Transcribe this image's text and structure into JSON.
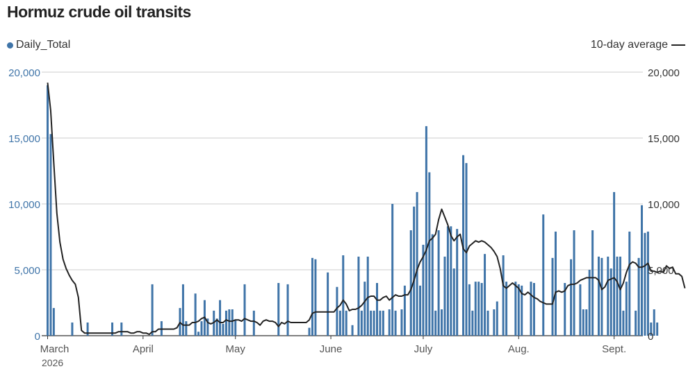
{
  "chart_data": {
    "type": "bar",
    "title": "Hormuz crude oil transits",
    "subtitle": "",
    "xlabel": "",
    "ylabel": "",
    "ylim": [
      0,
      20000
    ],
    "grid": true,
    "legend": {
      "left": "Daily_Total",
      "right": "10-day average"
    },
    "yticks": [
      0,
      5000,
      10000,
      15000,
      20000
    ],
    "ytick_labels": [
      "0",
      "5,000",
      "10,000",
      "15,000",
      "20,000"
    ],
    "xticks": [
      {
        "day": 0,
        "label": "March"
      },
      {
        "day": 31,
        "label": "April"
      },
      {
        "day": 61,
        "label": "May"
      },
      {
        "day": 92,
        "label": "June"
      },
      {
        "day": 122,
        "label": "July"
      },
      {
        "day": 153,
        "label": "Aug."
      },
      {
        "day": 184,
        "label": "Sept."
      }
    ],
    "x_sublabel": "2026",
    "series": [
      {
        "name": "Daily_Total",
        "type": "bar",
        "color": "#3f74a8",
        "values": [
          19000,
          15300,
          2100,
          0,
          0,
          0,
          0,
          0,
          1000,
          0,
          0,
          0,
          0,
          1000,
          0,
          0,
          0,
          0,
          0,
          0,
          0,
          1000,
          0,
          0,
          1000,
          0,
          0,
          0,
          0,
          0,
          0,
          0,
          0,
          0,
          3900,
          0,
          0,
          1100,
          0,
          0,
          0,
          0,
          0,
          2100,
          3900,
          1100,
          0,
          0,
          3200,
          300,
          1100,
          2700,
          1300,
          0,
          1900,
          1300,
          2700,
          900,
          1900,
          2000,
          2000,
          1200,
          0,
          0,
          3900,
          0,
          0,
          1900,
          0,
          0,
          0,
          0,
          0,
          0,
          0,
          4000,
          0,
          0,
          3900,
          0,
          0,
          0,
          0,
          0,
          0,
          600,
          5900,
          5800,
          0,
          0,
          0,
          4800,
          0,
          0,
          3700,
          1900,
          6100,
          1900,
          0,
          800,
          0,
          6000,
          1900,
          4100,
          6000,
          1900,
          1900,
          4000,
          1900,
          1900,
          0,
          2000,
          10000,
          1900,
          0,
          2000,
          3800,
          0,
          8000,
          9800,
          10900,
          3800,
          6900,
          15900,
          12400,
          7700,
          1900,
          8000,
          2000,
          6000,
          8300,
          8300,
          5100,
          8100,
          0,
          13700,
          13100,
          3900,
          1900,
          4100,
          4100,
          4000,
          6200,
          1900,
          0,
          2000,
          2600,
          0,
          6100,
          4100,
          0,
          0,
          4100,
          3900,
          3800,
          0,
          0,
          4100,
          4000,
          0,
          0,
          9200,
          0,
          0,
          5900,
          7900,
          0,
          0,
          4000,
          0,
          5800,
          8000,
          0,
          3900,
          2000,
          2000,
          5000,
          8000,
          0,
          6000,
          5900,
          0,
          6000,
          5100,
          10900,
          6000,
          6000,
          1900,
          4100,
          7900,
          0,
          1900,
          5900,
          9900,
          7800,
          7900,
          1000,
          2000,
          1000
        ]
      },
      {
        "name": "10-day average",
        "type": "line",
        "color": "#222222",
        "values": [
          19200,
          17100,
          13100,
          9300,
          7100,
          5800,
          5100,
          4600,
          4200,
          3900,
          2900,
          400,
          200,
          200,
          200,
          200,
          200,
          200,
          200,
          200,
          200,
          200,
          200,
          300,
          300,
          300,
          300,
          200,
          200,
          300,
          300,
          200,
          200,
          100,
          300,
          300,
          500,
          500,
          500,
          500,
          500,
          500,
          600,
          1000,
          800,
          800,
          800,
          1000,
          1000,
          1100,
          1300,
          1400,
          1000,
          900,
          1000,
          1200,
          1000,
          1000,
          1200,
          1100,
          1100,
          1200,
          1200,
          1100,
          1300,
          1200,
          1100,
          1100,
          1000,
          800,
          1100,
          1200,
          1100,
          1100,
          1000,
          700,
          1000,
          900,
          1100,
          1000,
          1000,
          1000,
          1000,
          1000,
          1000,
          1200,
          1700,
          1800,
          1800,
          1800,
          1800,
          1800,
          1800,
          1800,
          2100,
          2300,
          2700,
          2400,
          1900,
          2000,
          2000,
          2100,
          2300,
          2600,
          2900,
          3000,
          3000,
          2700,
          2700,
          2900,
          3000,
          2700,
          2900,
          3100,
          3000,
          3000,
          3100,
          3100,
          3500,
          4200,
          5000,
          5600,
          6000,
          6500,
          7200,
          7400,
          7700,
          8800,
          9600,
          9000,
          8400,
          7600,
          7200,
          7500,
          7700,
          6600,
          6300,
          6800,
          7000,
          7200,
          7100,
          7200,
          7100,
          6900,
          6700,
          6400,
          6000,
          5100,
          3800,
          3600,
          3800,
          4000,
          3800,
          3600,
          3200,
          3100,
          3300,
          3100,
          2900,
          2800,
          2600,
          2500,
          2400,
          2400,
          2400,
          3300,
          3400,
          3300,
          3400,
          3800,
          3900,
          3900,
          4000,
          4200,
          4300,
          4400,
          4400,
          4400,
          4400,
          4200,
          3500,
          3700,
          4200,
          4300,
          4400,
          4100,
          3500,
          4000,
          4800,
          5400,
          5600,
          5500,
          5200,
          5200,
          5300,
          5500,
          4900,
          4900,
          4800,
          4900,
          4800,
          5300,
          5100,
          5200,
          4700,
          4700,
          4500,
          3600
        ]
      }
    ]
  }
}
